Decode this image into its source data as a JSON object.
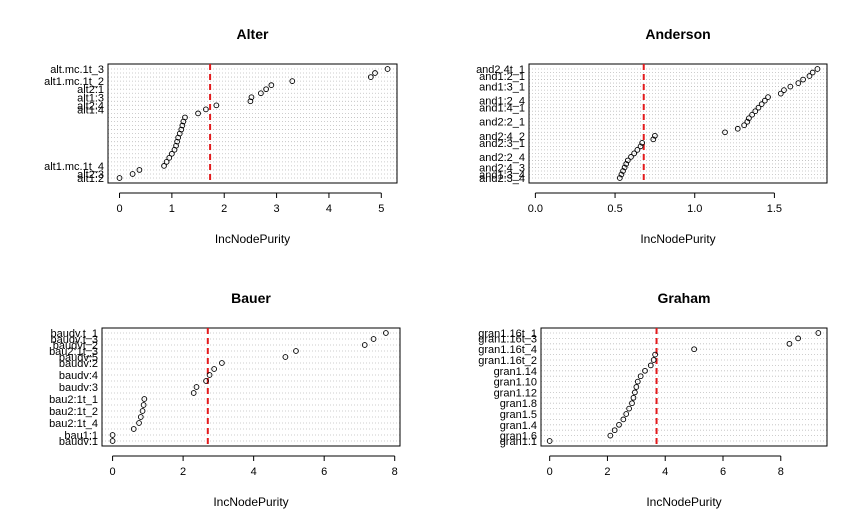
{
  "colors": {
    "threshold_line": "#e31a1c",
    "point_stroke": "#000000",
    "grid": "#bdbdbd"
  },
  "chart_data": [
    {
      "type": "scatter",
      "title": "Alter",
      "xlabel": "IncNodePurity",
      "xlim": [
        -0.22,
        5.3
      ],
      "xticks": [
        0,
        1,
        2,
        3,
        4,
        5
      ],
      "threshold": 1.73,
      "points": [
        {
          "label": "alt1:2",
          "value": 0.0
        },
        {
          "label": "alt2:3",
          "value": 0.25
        },
        {
          "label": "",
          "value": 0.38
        },
        {
          "label": "alt1.mc.1t_4",
          "value": 0.85
        },
        {
          "label": "",
          "value": 0.9
        },
        {
          "label": "",
          "value": 0.95
        },
        {
          "label": "",
          "value": 1.0
        },
        {
          "label": "",
          "value": 1.05
        },
        {
          "label": "",
          "value": 1.08
        },
        {
          "label": "",
          "value": 1.1
        },
        {
          "label": "",
          "value": 1.12
        },
        {
          "label": "",
          "value": 1.15
        },
        {
          "label": "",
          "value": 1.18
        },
        {
          "label": "",
          "value": 1.2
        },
        {
          "label": "",
          "value": 1.22
        },
        {
          "label": "",
          "value": 1.25
        },
        {
          "label": "",
          "value": 1.5
        },
        {
          "label": "alt1:4",
          "value": 1.65
        },
        {
          "label": "alt2:4",
          "value": 1.85
        },
        {
          "label": "",
          "value": 2.5
        },
        {
          "label": "alt1:3",
          "value": 2.52
        },
        {
          "label": "",
          "value": 2.7
        },
        {
          "label": "alt2:1",
          "value": 2.8
        },
        {
          "label": "",
          "value": 2.9
        },
        {
          "label": "alt1.mc.1t_2",
          "value": 3.3
        },
        {
          "label": "",
          "value": 4.8
        },
        {
          "label": "",
          "value": 4.88
        },
        {
          "label": "alt.mc.1t_3",
          "value": 5.12
        }
      ]
    },
    {
      "type": "scatter",
      "title": "Anderson",
      "xlabel": "IncNodePurity",
      "xlim": [
        -0.04,
        1.83
      ],
      "xticks": [
        0.0,
        0.5,
        1.0,
        1.5
      ],
      "threshold": 0.68,
      "points": [
        {
          "label": "and2:3_4",
          "value": 0.53
        },
        {
          "label": "and1:3_4",
          "value": 0.54
        },
        {
          "label": "",
          "value": 0.55
        },
        {
          "label": "and2:4_3",
          "value": 0.56
        },
        {
          "label": "",
          "value": 0.57
        },
        {
          "label": "",
          "value": 0.58
        },
        {
          "label": "and2:2_4",
          "value": 0.6
        },
        {
          "label": "",
          "value": 0.62
        },
        {
          "label": "",
          "value": 0.64
        },
        {
          "label": "",
          "value": 0.66
        },
        {
          "label": "and2:3_1",
          "value": 0.67
        },
        {
          "label": "",
          "value": 0.74
        },
        {
          "label": "and2:4_2",
          "value": 0.75
        },
        {
          "label": "",
          "value": 1.19
        },
        {
          "label": "",
          "value": 1.27
        },
        {
          "label": "",
          "value": 1.31
        },
        {
          "label": "and2:2_1",
          "value": 1.33
        },
        {
          "label": "",
          "value": 1.34
        },
        {
          "label": "",
          "value": 1.36
        },
        {
          "label": "",
          "value": 1.38
        },
        {
          "label": "and1:4_1",
          "value": 1.4
        },
        {
          "label": "",
          "value": 1.42
        },
        {
          "label": "and1:2_4",
          "value": 1.44
        },
        {
          "label": "",
          "value": 1.46
        },
        {
          "label": "",
          "value": 1.54
        },
        {
          "label": "",
          "value": 1.56
        },
        {
          "label": "and1:3_1",
          "value": 1.6
        },
        {
          "label": "",
          "value": 1.65
        },
        {
          "label": "",
          "value": 1.68
        },
        {
          "label": "and1:2_1",
          "value": 1.72
        },
        {
          "label": "",
          "value": 1.74
        },
        {
          "label": "and2.4t_1",
          "value": 1.77
        }
      ]
    },
    {
      "type": "scatter",
      "title": "Bauer",
      "xlabel": "IncNodePurity",
      "xlim": [
        -0.3,
        8.15
      ],
      "xticks": [
        0,
        2,
        4,
        6,
        8
      ],
      "threshold": 2.7,
      "points": [
        {
          "label": "baudv:1",
          "value": 0.0
        },
        {
          "label": "bau1:1",
          "value": 0.0
        },
        {
          "label": "",
          "value": 0.6
        },
        {
          "label": "bau2:1t_4",
          "value": 0.75
        },
        {
          "label": "",
          "value": 0.8
        },
        {
          "label": "bau2:1t_2",
          "value": 0.85
        },
        {
          "label": "",
          "value": 0.88
        },
        {
          "label": "bau2:1t_1",
          "value": 0.9
        },
        {
          "label": "",
          "value": 2.3
        },
        {
          "label": "baudv:3",
          "value": 2.38
        },
        {
          "label": "",
          "value": 2.65
        },
        {
          "label": "baudv:4",
          "value": 2.75
        },
        {
          "label": "",
          "value": 2.88
        },
        {
          "label": "baudv:2",
          "value": 3.1
        },
        {
          "label": "baudv:5",
          "value": 4.9
        },
        {
          "label": "bau2:1t_3",
          "value": 5.2
        },
        {
          "label": "baudvt_2",
          "value": 7.15
        },
        {
          "label": "baudv.t_3",
          "value": 7.4
        },
        {
          "label": "baudv.t_1",
          "value": 7.75
        }
      ]
    },
    {
      "type": "scatter",
      "title": "Graham",
      "xlabel": "IncNodePurity",
      "xlim": [
        -0.3,
        9.6
      ],
      "xticks": [
        0,
        2,
        4,
        6,
        8
      ],
      "threshold": 3.7,
      "points": [
        {
          "label": "gran1.1",
          "value": 0.0
        },
        {
          "label": "gran1.6",
          "value": 2.1
        },
        {
          "label": "",
          "value": 2.25
        },
        {
          "label": "gran1.4",
          "value": 2.4
        },
        {
          "label": "",
          "value": 2.55
        },
        {
          "label": "gran1.5",
          "value": 2.65
        },
        {
          "label": "",
          "value": 2.75
        },
        {
          "label": "gran1.8",
          "value": 2.85
        },
        {
          "label": "",
          "value": 2.9
        },
        {
          "label": "gran1.12",
          "value": 2.95
        },
        {
          "label": "",
          "value": 3.0
        },
        {
          "label": "gran1.10",
          "value": 3.05
        },
        {
          "label": "",
          "value": 3.15
        },
        {
          "label": "gran1.14",
          "value": 3.3
        },
        {
          "label": "",
          "value": 3.5
        },
        {
          "label": "gran1.16t_2",
          "value": 3.6
        },
        {
          "label": "",
          "value": 3.65
        },
        {
          "label": "gran1.16t_4",
          "value": 5.0
        },
        {
          "label": "",
          "value": 8.3
        },
        {
          "label": "gran1.16t_3",
          "value": 8.6
        },
        {
          "label": "gran1.16t_1",
          "value": 9.3
        }
      ]
    }
  ]
}
